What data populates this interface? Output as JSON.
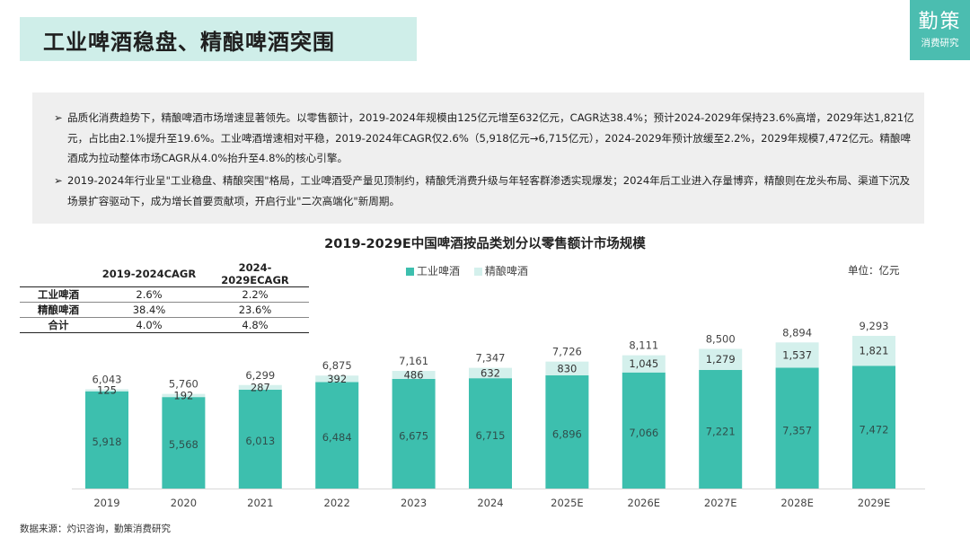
{
  "header": {
    "title": "工业啤酒稳盘、精酿啤酒突围"
  },
  "logo": {
    "line1": "勤策",
    "line2": "消费研究"
  },
  "summary": {
    "bullets": [
      "品质化消费趋势下，精酿啤酒市场增速显著领先。以零售额计，2019-2024年规模由125亿元增至632亿元，CAGR达38.4%；预计2024-2029年保持23.6%高增，2029年达1,821亿元，占比由2.1%提升至19.6%。工业啤酒增速相对平稳，2019-2024年CAGR仅2.6%（5,918亿元→6,715亿元），2024-2029年预计放缓至2.2%，2029年规模7,472亿元。精酿啤酒成为拉动整体市场CAGR从4.0%抬升至4.8%的核心引擎。",
      "2019-2024年行业呈\"工业稳盘、精酿突围\"格局，工业啤酒受产量见顶制约，精酿凭消费升级与年轻客群渗透实现爆发；2024年后工业进入存量博弈，精酿则在龙头布局、渠道下沉及场景扩容驱动下，成为增长首要贡献项，开启行业\"二次高端化\"新周期。"
    ],
    "bullet_symbol": "➢"
  },
  "cagr_table": {
    "headers": [
      "",
      "2019-2024CAGR",
      "2024-2029ECAGR"
    ],
    "rows": [
      {
        "label": "工业啤酒",
        "v1": "2.6%",
        "v2": "2.2%"
      },
      {
        "label": "精酿啤酒",
        "v1": "38.4%",
        "v2": "23.6%"
      },
      {
        "label": "合计",
        "v1": "4.0%",
        "v2": "4.8%"
      }
    ]
  },
  "unit_label": "单位：亿元",
  "source": "数据来源：灼识咨询，勤策消费研究",
  "colors": {
    "industrial": "#3dbfae",
    "craft": "#d4f0ec",
    "accent": "#4bbdb0"
  },
  "chart_data": {
    "type": "bar",
    "stacked": true,
    "title": "2019-2029E中国啤酒按品类划分以零售额计市场规模",
    "categories": [
      "2019",
      "2020",
      "2021",
      "2022",
      "2023",
      "2024",
      "2025E",
      "2026E",
      "2027E",
      "2028E",
      "2029E"
    ],
    "series": [
      {
        "name": "工业啤酒",
        "values": [
          5918,
          5568,
          6013,
          6484,
          6675,
          6715,
          6896,
          7066,
          7221,
          7357,
          7472
        ],
        "labels": [
          "5,918",
          "5,568",
          "6,013",
          "6,484",
          "6,675",
          "6,715",
          "6,896",
          "7,066",
          "7,221",
          "7,357",
          "7,472"
        ]
      },
      {
        "name": "精酿啤酒",
        "values": [
          125,
          192,
          287,
          392,
          486,
          632,
          830,
          1045,
          1279,
          1537,
          1821
        ],
        "labels": [
          "125",
          "192",
          "287",
          "392",
          "486",
          "632",
          "830",
          "1,045",
          "1,279",
          "1,537",
          "1,821"
        ]
      }
    ],
    "totals": [
      6043,
      5760,
      6299,
      6875,
      7161,
      7347,
      7726,
      8111,
      8500,
      8894,
      9293
    ],
    "total_labels": [
      "6,043",
      "5,760",
      "6,299",
      "6,875",
      "7,161",
      "7,347",
      "7,726",
      "8,111",
      "8,500",
      "8,894",
      "9,293"
    ],
    "ylim": [
      0,
      9293
    ],
    "legend_position": "top-center"
  }
}
